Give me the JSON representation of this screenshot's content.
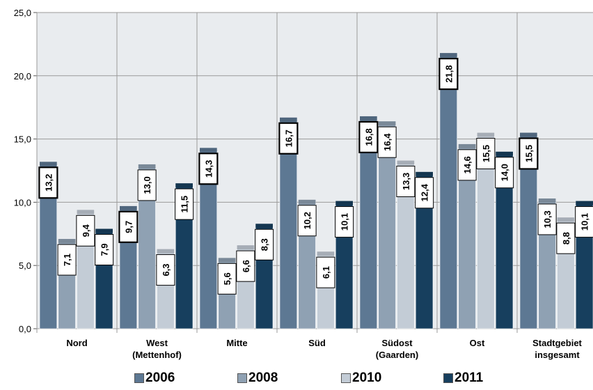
{
  "chart_data": {
    "type": "bar",
    "categories": [
      [
        "Nord"
      ],
      [
        "West",
        "(Mettenhof)"
      ],
      [
        "Mitte"
      ],
      [
        "Süd"
      ],
      [
        "Südost",
        "(Gaarden)"
      ],
      [
        "Ost"
      ],
      [
        "Stadtgebiet",
        "insgesamt"
      ]
    ],
    "series": [
      {
        "name": "2006",
        "color": "#5d7893",
        "values": [
          13.2,
          9.7,
          14.3,
          16.7,
          16.8,
          21.8,
          15.5
        ],
        "labels": [
          "13,2",
          "9,7",
          "14,3",
          "16,7",
          "16,8",
          "21,8",
          "15,5"
        ]
      },
      {
        "name": "2008",
        "color": "#8fa1b3",
        "values": [
          7.1,
          13.0,
          5.6,
          10.2,
          16.4,
          14.6,
          10.3
        ],
        "labels": [
          "7,1",
          "13,0",
          "5,6",
          "10,2",
          "16,4",
          "14,6",
          "10,3"
        ]
      },
      {
        "name": "2010",
        "color": "#c3ccd6",
        "values": [
          9.4,
          6.3,
          6.6,
          6.1,
          13.3,
          15.5,
          8.8
        ],
        "labels": [
          "9,4",
          "6,3",
          "6,6",
          "6,1",
          "13,3",
          "15,5",
          "8,8"
        ]
      },
      {
        "name": "2011",
        "color": "#173f5e",
        "values": [
          7.9,
          11.5,
          8.3,
          10.1,
          12.4,
          14.0,
          10.1
        ],
        "labels": [
          "7,9",
          "11,5",
          "8,3",
          "10,1",
          "12,4",
          "14,0",
          "10,1"
        ]
      }
    ],
    "yticks": [
      "0,0",
      "5,0",
      "10,0",
      "15,0",
      "20,0",
      "25,0"
    ],
    "ylim": [
      0,
      25
    ],
    "grid": true,
    "legend_position": "bottom",
    "plot_bg": "#e9ecef",
    "grid_color": "#9a9a9a"
  }
}
